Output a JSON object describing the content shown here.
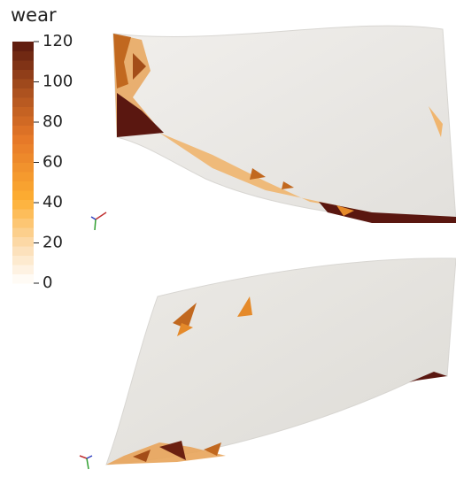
{
  "colorbar": {
    "title": "wear",
    "range": [
      0,
      120
    ],
    "ticks": [
      0,
      20,
      40,
      60,
      80,
      100,
      120
    ]
  }
}
